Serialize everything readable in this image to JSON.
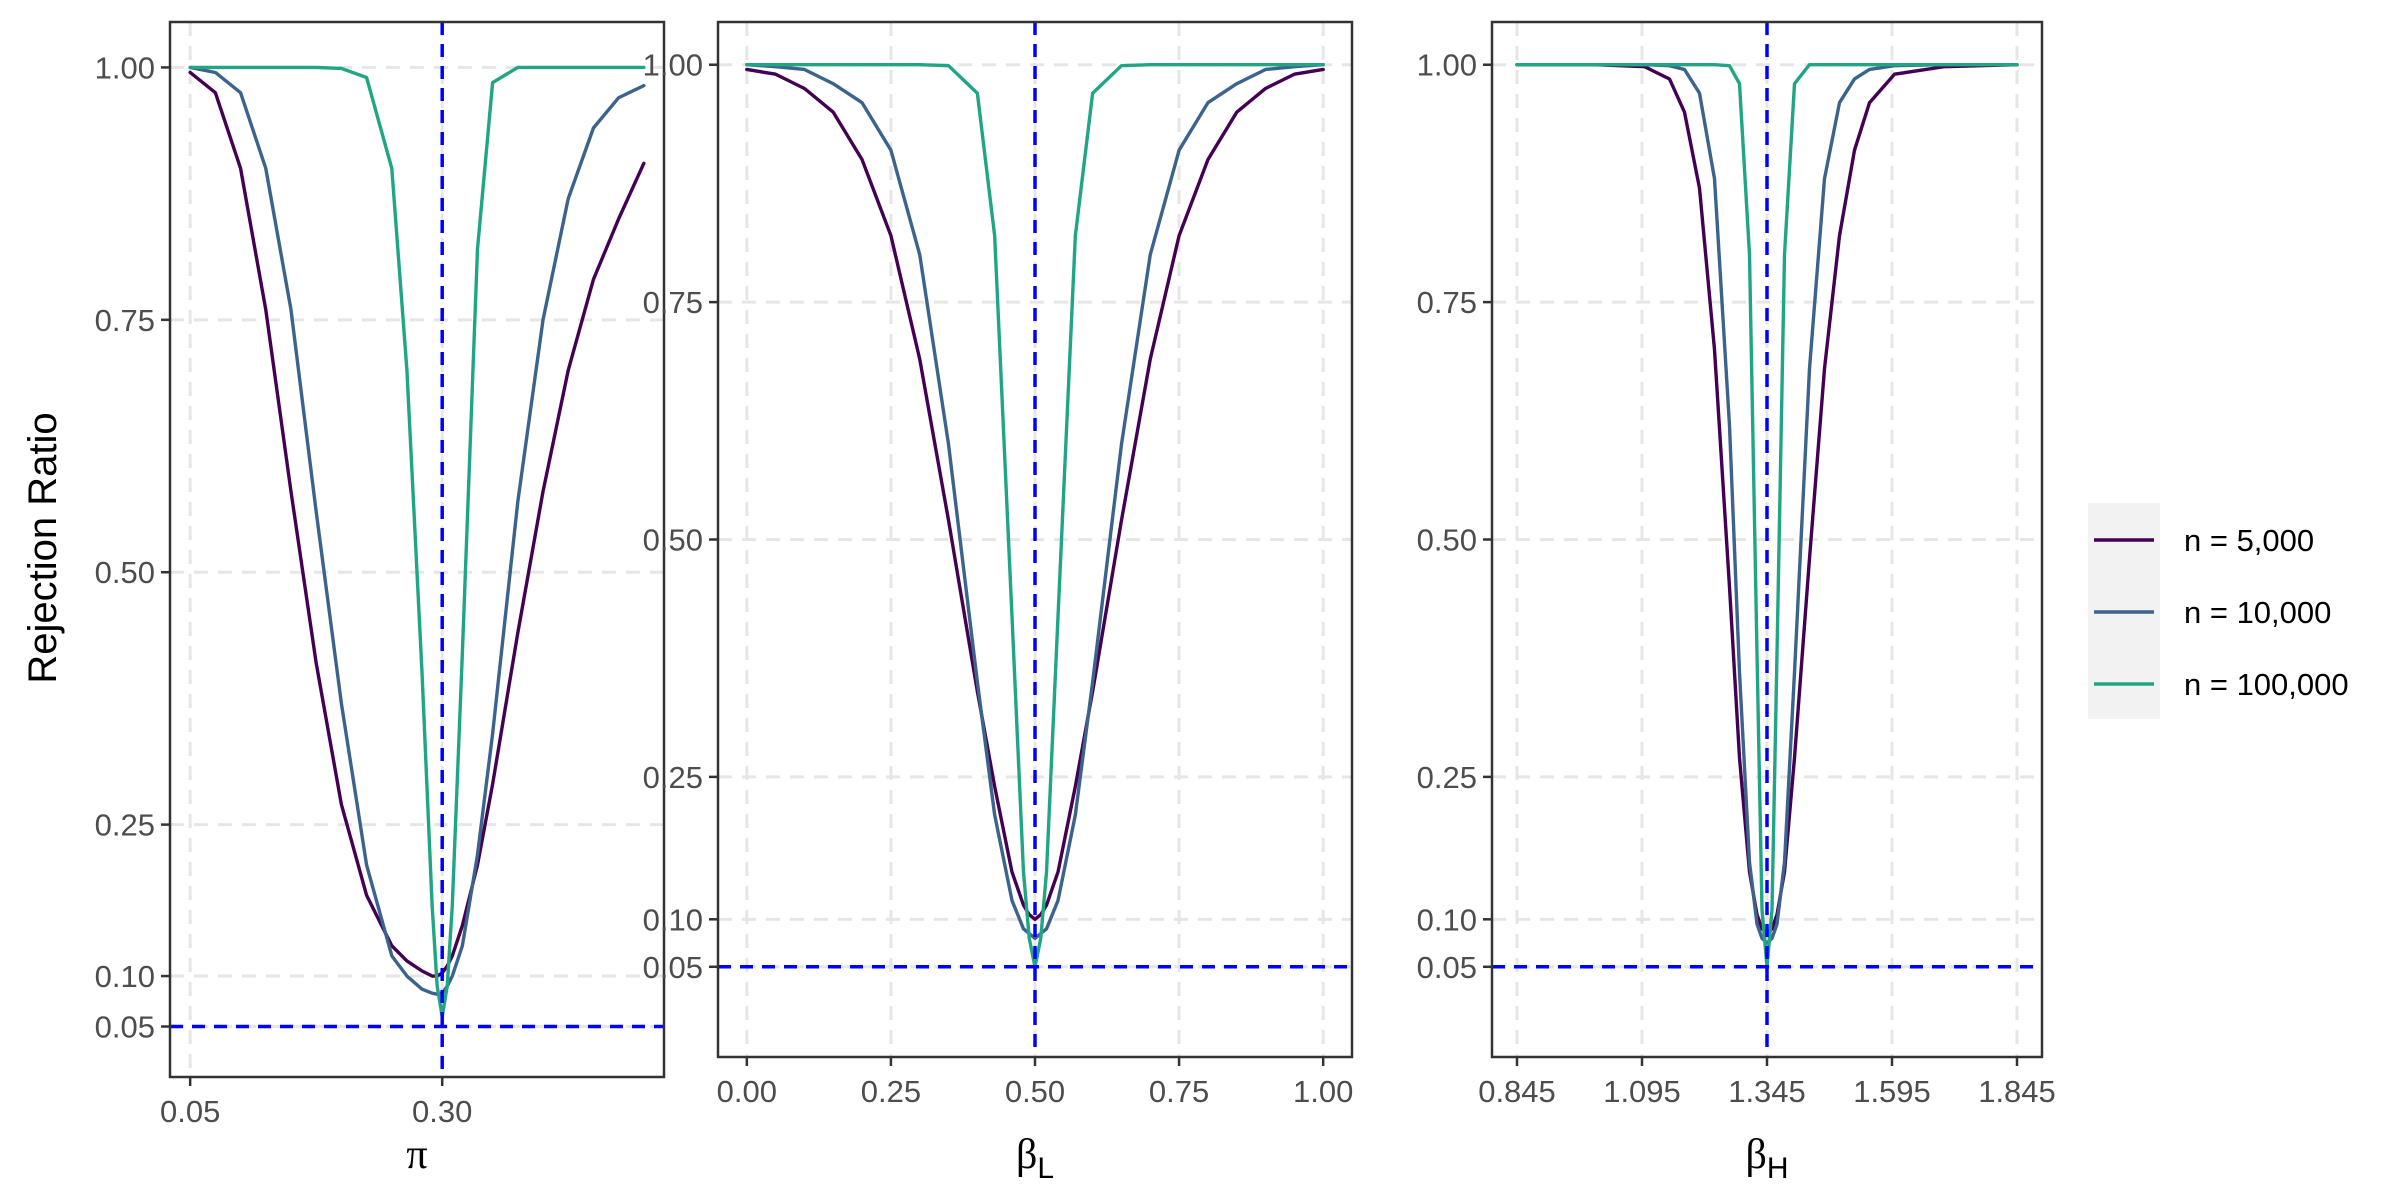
{
  "chart_data": [
    {
      "type": "line",
      "xlabel": "π",
      "xlabel_sub": "",
      "ylabel": "Rejection Ratio",
      "xlim": [
        0.03,
        0.52
      ],
      "ylim": [
        0.0,
        1.045
      ],
      "x_ticks": [
        0.05,
        0.3
      ],
      "x_tick_labels": [
        "0.05",
        "0.30"
      ],
      "x_grid": [
        0.05,
        0.3
      ],
      "y_ticks": [
        0.05,
        0.1,
        0.25,
        0.5,
        0.75,
        1.0
      ],
      "y_tick_labels": [
        "0.05",
        "0.10",
        "0.25",
        "0.50",
        "0.75",
        "1.00"
      ],
      "true_value": 0.3,
      "significance_level": 0.05,
      "x": [
        0.05,
        0.075,
        0.1,
        0.125,
        0.15,
        0.175,
        0.2,
        0.225,
        0.25,
        0.265,
        0.28,
        0.29,
        0.295,
        0.3,
        0.305,
        0.31,
        0.32,
        0.335,
        0.35,
        0.375,
        0.4,
        0.425,
        0.45,
        0.475,
        0.5
      ],
      "series": [
        {
          "name": "n = 5,000",
          "values": [
            0.995,
            0.975,
            0.9,
            0.76,
            0.58,
            0.41,
            0.27,
            0.18,
            0.13,
            0.115,
            0.105,
            0.1,
            0.1,
            0.103,
            0.11,
            0.12,
            0.15,
            0.21,
            0.29,
            0.44,
            0.58,
            0.7,
            0.79,
            0.85,
            0.905
          ]
        },
        {
          "name": "n = 10,000",
          "values": [
            1.0,
            0.995,
            0.975,
            0.9,
            0.76,
            0.56,
            0.37,
            0.21,
            0.12,
            0.1,
            0.087,
            0.083,
            0.082,
            0.083,
            0.09,
            0.1,
            0.13,
            0.22,
            0.34,
            0.57,
            0.75,
            0.87,
            0.94,
            0.97,
            0.982
          ]
        },
        {
          "name": "n = 100,000",
          "values": [
            1.0,
            1.0,
            1.0,
            1.0,
            1.0,
            1.0,
            0.999,
            0.99,
            0.9,
            0.7,
            0.4,
            0.17,
            0.09,
            0.06,
            0.09,
            0.17,
            0.42,
            0.82,
            0.985,
            1.0,
            1.0,
            1.0,
            1.0,
            1.0,
            1.0
          ]
        }
      ]
    },
    {
      "type": "line",
      "xlabel": "β",
      "xlabel_sub": "L",
      "ylabel": "",
      "xlim": [
        -0.05,
        1.05
      ],
      "ylim": [
        -0.045,
        1.045
      ],
      "x_ticks": [
        0.0,
        0.25,
        0.5,
        0.75,
        1.0
      ],
      "x_tick_labels": [
        "0.00",
        "0.25",
        "0.50",
        "0.75",
        "1.00"
      ],
      "x_grid": [
        0.0,
        0.25,
        0.5,
        0.75,
        1.0
      ],
      "y_ticks": [
        0.05,
        0.1,
        0.25,
        0.5,
        0.75,
        1.0
      ],
      "y_tick_labels": [
        "0.05",
        "0.10",
        "0.25",
        "0.50",
        "0.75",
        "1.00"
      ],
      "true_value": 0.5,
      "significance_level": 0.05,
      "x": [
        0.0,
        0.05,
        0.1,
        0.15,
        0.2,
        0.25,
        0.3,
        0.35,
        0.4,
        0.43,
        0.46,
        0.48,
        0.49,
        0.5,
        0.51,
        0.52,
        0.54,
        0.57,
        0.6,
        0.65,
        0.7,
        0.75,
        0.8,
        0.85,
        0.9,
        0.95,
        1.0
      ],
      "series": [
        {
          "name": "n = 5,000",
          "values": [
            0.995,
            0.99,
            0.975,
            0.95,
            0.9,
            0.82,
            0.69,
            0.52,
            0.34,
            0.24,
            0.15,
            0.115,
            0.105,
            0.1,
            0.105,
            0.115,
            0.15,
            0.24,
            0.34,
            0.52,
            0.69,
            0.82,
            0.9,
            0.95,
            0.975,
            0.99,
            0.995
          ]
        },
        {
          "name": "n = 10,000",
          "values": [
            1.0,
            0.998,
            0.995,
            0.98,
            0.96,
            0.91,
            0.8,
            0.6,
            0.35,
            0.21,
            0.12,
            0.09,
            0.085,
            0.08,
            0.085,
            0.09,
            0.12,
            0.21,
            0.35,
            0.6,
            0.8,
            0.91,
            0.96,
            0.98,
            0.995,
            0.998,
            1.0
          ]
        },
        {
          "name": "n = 100,000",
          "values": [
            1.0,
            1.0,
            1.0,
            1.0,
            1.0,
            1.0,
            1.0,
            0.999,
            0.97,
            0.82,
            0.42,
            0.15,
            0.08,
            0.05,
            0.08,
            0.15,
            0.42,
            0.82,
            0.97,
            0.999,
            1.0,
            1.0,
            1.0,
            1.0,
            1.0,
            1.0,
            1.0
          ]
        }
      ]
    },
    {
      "type": "line",
      "xlabel": "β",
      "xlabel_sub": "H",
      "ylabel": "",
      "xlim": [
        0.795,
        1.895
      ],
      "ylim": [
        -0.045,
        1.045
      ],
      "x_ticks": [
        0.845,
        1.095,
        1.345,
        1.595,
        1.845
      ],
      "x_tick_labels": [
        "0.845",
        "1.095",
        "1.345",
        "1.595",
        "1.845"
      ],
      "x_grid": [
        0.845,
        1.095,
        1.345,
        1.595,
        1.845
      ],
      "y_ticks": [
        0.05,
        0.1,
        0.25,
        0.5,
        0.75,
        1.0
      ],
      "y_tick_labels": [
        "0.05",
        "0.10",
        "0.25",
        "0.50",
        "0.75",
        "1.00"
      ],
      "true_value": 1.345,
      "significance_level": 0.05,
      "x": [
        0.845,
        1.0,
        1.1,
        1.15,
        1.18,
        1.21,
        1.24,
        1.27,
        1.29,
        1.31,
        1.325,
        1.335,
        1.345,
        1.355,
        1.365,
        1.38,
        1.4,
        1.43,
        1.46,
        1.49,
        1.52,
        1.55,
        1.6,
        1.7,
        1.845
      ],
      "series": [
        {
          "name": "n = 5,000",
          "values": [
            1.0,
            1.0,
            0.998,
            0.985,
            0.95,
            0.87,
            0.7,
            0.45,
            0.27,
            0.15,
            0.105,
            0.09,
            0.085,
            0.09,
            0.105,
            0.15,
            0.27,
            0.48,
            0.68,
            0.82,
            0.91,
            0.96,
            0.99,
            0.998,
            1.0
          ]
        },
        {
          "name": "n = 10,000",
          "values": [
            1.0,
            1.0,
            1.0,
            0.999,
            0.995,
            0.97,
            0.88,
            0.62,
            0.36,
            0.16,
            0.095,
            0.08,
            0.075,
            0.08,
            0.095,
            0.16,
            0.36,
            0.68,
            0.88,
            0.96,
            0.985,
            0.995,
            0.999,
            1.0,
            1.0
          ]
        },
        {
          "name": "n = 100,000",
          "values": [
            1.0,
            1.0,
            1.0,
            1.0,
            1.0,
            1.0,
            1.0,
            0.999,
            0.98,
            0.8,
            0.38,
            0.11,
            0.05,
            0.11,
            0.38,
            0.8,
            0.98,
            1.0,
            1.0,
            1.0,
            1.0,
            1.0,
            1.0,
            1.0,
            1.0
          ]
        }
      ]
    }
  ],
  "legend": {
    "placement": "right",
    "items": [
      {
        "label": "n = 5,000",
        "color": "#440154"
      },
      {
        "label": "n = 10,000",
        "color": "#3b638c"
      },
      {
        "label": "n = 100,000",
        "color": "#21a685"
      }
    ]
  },
  "colors": {
    "reference_line": "#0000ff",
    "grid": "#e6e6e6",
    "panel_border": "#333333",
    "legend_background": "#f2f2f2"
  }
}
